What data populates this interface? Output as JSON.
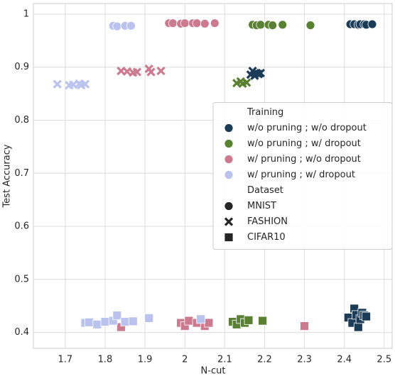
{
  "chart_data": {
    "type": "scatter",
    "x_label": "N-cut",
    "y_label": "Test Accuracy",
    "xlim": [
      1.62,
      2.52
    ],
    "ylim": [
      0.37,
      1.02
    ],
    "xticks": [
      1.7,
      1.8,
      1.9,
      2.0,
      2.1,
      2.2,
      2.3,
      2.4,
      2.5
    ],
    "yticks": [
      0.4,
      0.5,
      0.6,
      0.7,
      0.8,
      0.9,
      1.0
    ],
    "grid": true,
    "legend": {
      "loc": "center right",
      "training_title": "Training",
      "dataset_title": "Dataset"
    },
    "datasets": [
      {
        "name": "MNIST",
        "marker": "circle"
      },
      {
        "name": "FASHION",
        "marker": "x"
      },
      {
        "name": "CIFAR10",
        "marker": "square"
      }
    ],
    "series": [
      {
        "name": "w/o pruning ; w/o dropout",
        "color": "#1b3b56",
        "points": [
          {
            "x": [
              2.415,
              2.425,
              2.435,
              2.44,
              2.45,
              2.455,
              2.47
            ],
            "y": [
              0.981,
              0.981,
              0.98,
              0.981,
              0.981,
              0.98,
              0.981
            ]
          },
          {
            "x": [
              2.165,
              2.17,
              2.175,
              2.18,
              2.185,
              2.19
            ],
            "y": [
              0.886,
              0.893,
              0.884,
              0.889,
              0.887,
              0.889
            ]
          },
          {
            "x": [
              2.41,
              2.42,
              2.425,
              2.43,
              2.435,
              2.44,
              2.445,
              2.45,
              2.455
            ],
            "y": [
              0.428,
              0.418,
              0.445,
              0.433,
              0.41,
              0.425,
              0.437,
              0.432,
              0.43
            ]
          }
        ]
      },
      {
        "name": "w/o pruning ; w/ dropout",
        "color": "#5a8133",
        "points": [
          {
            "x": [
              2.17,
              2.18,
              2.19,
              2.21,
              2.22,
              2.245,
              2.315
            ],
            "y": [
              0.98,
              0.979,
              0.98,
              0.98,
              0.979,
              0.98,
              0.979
            ]
          },
          {
            "x": [
              2.13,
              2.14,
              2.145,
              2.155
            ],
            "y": [
              0.87,
              0.873,
              0.869,
              0.871
            ]
          },
          {
            "x": [
              2.12,
              2.13,
              2.14,
              2.15,
              2.16,
              2.195
            ],
            "y": [
              0.42,
              0.415,
              0.425,
              0.418,
              0.423,
              0.422
            ]
          }
        ]
      },
      {
        "name": "w/ pruning ; w/o dropout",
        "color": "#cc7a8f",
        "points": [
          {
            "x": [
              1.96,
              1.97,
              1.99,
              2.0,
              2.02,
              2.03,
              2.05,
              2.075
            ],
            "y": [
              0.983,
              0.983,
              0.982,
              0.983,
              0.983,
              0.983,
              0.982,
              0.983
            ]
          },
          {
            "x": [
              1.84,
              1.855,
              1.87,
              1.88,
              1.91,
              1.915,
              1.94
            ],
            "y": [
              0.893,
              0.892,
              0.89,
              0.891,
              0.897,
              0.891,
              0.893
            ]
          },
          {
            "x": [
              1.84,
              1.99,
              2.0,
              2.01,
              2.03,
              2.05,
              2.06,
              2.3
            ],
            "y": [
              0.41,
              0.418,
              0.412,
              0.422,
              0.418,
              0.412,
              0.418,
              0.412
            ]
          }
        ]
      },
      {
        "name": "w/ pruning ; w/ dropout",
        "color": "#b9c3ee",
        "points": [
          {
            "x": [
              1.82,
              1.83,
              1.85,
              1.865
            ],
            "y": [
              0.978,
              0.977,
              0.978,
              0.978
            ]
          },
          {
            "x": [
              1.68,
              1.71,
              1.72,
              1.735,
              1.74,
              1.75
            ],
            "y": [
              0.868,
              0.866,
              0.867,
              0.869,
              0.866,
              0.868
            ]
          },
          {
            "x": [
              1.75,
              1.76,
              1.78,
              1.8,
              1.82,
              1.83,
              1.85,
              1.87,
              1.91,
              2.04
            ],
            "y": [
              0.418,
              0.419,
              0.415,
              0.42,
              0.422,
              0.432,
              0.42,
              0.421,
              0.427,
              0.425
            ]
          }
        ]
      }
    ]
  }
}
